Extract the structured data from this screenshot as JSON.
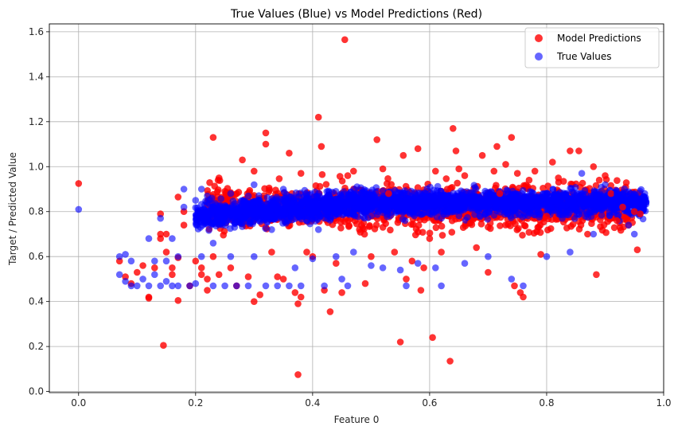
{
  "chart_data": {
    "type": "scatter",
    "title": "True Values (Blue) vs Model Predictions (Red)",
    "xlabel": "Feature 0",
    "ylabel": "Target / Predicted Value",
    "xlim": [
      -0.05,
      1.0
    ],
    "ylim": [
      -0.005,
      1.635
    ],
    "xticks": [
      0.0,
      0.2,
      0.4,
      0.6,
      0.8,
      1.0
    ],
    "xtick_labels": [
      "0.0",
      "0.2",
      "0.4",
      "0.6",
      "0.8",
      "1.0"
    ],
    "yticks": [
      0.0,
      0.2,
      0.4,
      0.6,
      0.8,
      1.0,
      1.2,
      1.4,
      1.6
    ],
    "ytick_labels": [
      "0.0",
      "0.2",
      "0.4",
      "0.6",
      "0.8",
      "1.0",
      "1.2",
      "1.4",
      "1.6"
    ],
    "grid": true,
    "legend_position": "top-right",
    "series": [
      {
        "name": "Model Predictions",
        "color": "#ff0000",
        "opacity": 0.8,
        "points": [
          [
            0.0,
            0.925
          ],
          [
            0.07,
            0.58
          ],
          [
            0.08,
            0.51
          ],
          [
            0.09,
            0.48
          ],
          [
            0.1,
            0.53
          ],
          [
            0.11,
            0.56
          ],
          [
            0.12,
            0.415
          ],
          [
            0.12,
            0.42
          ],
          [
            0.13,
            0.55
          ],
          [
            0.14,
            0.7
          ],
          [
            0.14,
            0.68
          ],
          [
            0.14,
            0.79
          ],
          [
            0.145,
            0.205
          ],
          [
            0.15,
            0.62
          ],
          [
            0.15,
            0.7
          ],
          [
            0.16,
            0.55
          ],
          [
            0.16,
            0.52
          ],
          [
            0.17,
            0.405
          ],
          [
            0.17,
            0.595
          ],
          [
            0.17,
            0.865
          ],
          [
            0.18,
            0.74
          ],
          [
            0.18,
            0.8
          ],
          [
            0.19,
            0.47
          ],
          [
            0.2,
            0.58
          ],
          [
            0.21,
            0.55
          ],
          [
            0.21,
            0.52
          ],
          [
            0.22,
            0.45
          ],
          [
            0.22,
            0.5
          ],
          [
            0.23,
            1.13
          ],
          [
            0.23,
            0.6
          ],
          [
            0.24,
            0.95
          ],
          [
            0.24,
            0.52
          ],
          [
            0.25,
            0.89
          ],
          [
            0.26,
            0.55
          ],
          [
            0.27,
            0.47
          ],
          [
            0.28,
            1.03
          ],
          [
            0.29,
            0.51
          ],
          [
            0.3,
            0.4
          ],
          [
            0.3,
            0.98
          ],
          [
            0.31,
            0.43
          ],
          [
            0.32,
            1.1
          ],
          [
            0.32,
            1.15
          ],
          [
            0.33,
            0.62
          ],
          [
            0.34,
            0.51
          ],
          [
            0.35,
            0.5
          ],
          [
            0.36,
            1.06
          ],
          [
            0.37,
            0.44
          ],
          [
            0.375,
            0.075
          ],
          [
            0.375,
            0.39
          ],
          [
            0.38,
            0.42
          ],
          [
            0.38,
            0.97
          ],
          [
            0.39,
            0.62
          ],
          [
            0.4,
            0.6
          ],
          [
            0.41,
            1.22
          ],
          [
            0.415,
            1.09
          ],
          [
            0.42,
            0.45
          ],
          [
            0.43,
            0.355
          ],
          [
            0.44,
            0.57
          ],
          [
            0.45,
            0.44
          ],
          [
            0.455,
            1.565
          ],
          [
            0.46,
            0.96
          ],
          [
            0.47,
            0.98
          ],
          [
            0.48,
            0.72
          ],
          [
            0.49,
            0.48
          ],
          [
            0.5,
            0.6
          ],
          [
            0.51,
            1.12
          ],
          [
            0.52,
            0.99
          ],
          [
            0.53,
            0.88
          ],
          [
            0.54,
            0.62
          ],
          [
            0.55,
            0.22
          ],
          [
            0.555,
            1.05
          ],
          [
            0.56,
            0.5
          ],
          [
            0.57,
            0.58
          ],
          [
            0.58,
            1.08
          ],
          [
            0.585,
            0.45
          ],
          [
            0.59,
            0.55
          ],
          [
            0.6,
            0.68
          ],
          [
            0.605,
            0.24
          ],
          [
            0.61,
            0.98
          ],
          [
            0.62,
            0.62
          ],
          [
            0.63,
            0.9
          ],
          [
            0.635,
            0.135
          ],
          [
            0.64,
            1.17
          ],
          [
            0.645,
            1.07
          ],
          [
            0.65,
            0.99
          ],
          [
            0.66,
            0.96
          ],
          [
            0.67,
            0.75
          ],
          [
            0.68,
            0.64
          ],
          [
            0.69,
            1.05
          ],
          [
            0.7,
            0.53
          ],
          [
            0.71,
            0.98
          ],
          [
            0.715,
            1.09
          ],
          [
            0.72,
            0.88
          ],
          [
            0.73,
            1.01
          ],
          [
            0.74,
            1.13
          ],
          [
            0.745,
            0.47
          ],
          [
            0.75,
            0.97
          ],
          [
            0.755,
            0.44
          ],
          [
            0.76,
            0.42
          ],
          [
            0.77,
            0.94
          ],
          [
            0.78,
            0.98
          ],
          [
            0.79,
            0.61
          ],
          [
            0.8,
            0.78
          ],
          [
            0.81,
            1.02
          ],
          [
            0.82,
            0.95
          ],
          [
            0.84,
            1.07
          ],
          [
            0.855,
            1.07
          ],
          [
            0.87,
            0.7
          ],
          [
            0.88,
            1.0
          ],
          [
            0.885,
            0.52
          ],
          [
            0.89,
            0.94
          ],
          [
            0.9,
            0.96
          ],
          [
            0.91,
            0.88
          ],
          [
            0.92,
            0.76
          ],
          [
            0.93,
            0.82
          ],
          [
            0.94,
            0.74
          ],
          [
            0.95,
            0.8
          ],
          [
            0.955,
            0.63
          ],
          [
            0.96,
            0.79
          ]
        ]
      },
      {
        "name": "True Values",
        "color": "#0000ff",
        "opacity": 0.6,
        "points": [
          [
            0.0,
            0.81
          ],
          [
            0.07,
            0.6
          ],
          [
            0.07,
            0.52
          ],
          [
            0.08,
            0.61
          ],
          [
            0.08,
            0.49
          ],
          [
            0.09,
            0.47
          ],
          [
            0.09,
            0.58
          ],
          [
            0.1,
            0.47
          ],
          [
            0.11,
            0.5
          ],
          [
            0.12,
            0.47
          ],
          [
            0.12,
            0.68
          ],
          [
            0.13,
            0.58
          ],
          [
            0.13,
            0.52
          ],
          [
            0.14,
            0.47
          ],
          [
            0.14,
            0.77
          ],
          [
            0.15,
            0.49
          ],
          [
            0.15,
            0.58
          ],
          [
            0.16,
            0.47
          ],
          [
            0.16,
            0.68
          ],
          [
            0.17,
            0.6
          ],
          [
            0.17,
            0.47
          ],
          [
            0.18,
            0.82
          ],
          [
            0.18,
            0.9
          ],
          [
            0.19,
            0.47
          ],
          [
            0.2,
            0.85
          ],
          [
            0.2,
            0.48
          ],
          [
            0.21,
            0.9
          ],
          [
            0.21,
            0.6
          ],
          [
            0.22,
            0.87
          ],
          [
            0.23,
            0.47
          ],
          [
            0.23,
            0.66
          ],
          [
            0.24,
            0.8
          ],
          [
            0.25,
            0.47
          ],
          [
            0.26,
            0.88
          ],
          [
            0.26,
            0.6
          ],
          [
            0.27,
            0.47
          ],
          [
            0.28,
            0.85
          ],
          [
            0.29,
            0.47
          ],
          [
            0.3,
            0.92
          ],
          [
            0.3,
            0.6
          ],
          [
            0.31,
            0.85
          ],
          [
            0.32,
            0.47
          ],
          [
            0.33,
            0.72
          ],
          [
            0.34,
            0.47
          ],
          [
            0.35,
            0.9
          ],
          [
            0.36,
            0.47
          ],
          [
            0.37,
            0.55
          ],
          [
            0.38,
            0.47
          ],
          [
            0.39,
            0.86
          ],
          [
            0.4,
            0.59
          ],
          [
            0.41,
            0.72
          ],
          [
            0.42,
            0.47
          ],
          [
            0.43,
            0.86
          ],
          [
            0.44,
            0.6
          ],
          [
            0.45,
            0.5
          ],
          [
            0.46,
            0.47
          ],
          [
            0.47,
            0.62
          ],
          [
            0.5,
            0.56
          ],
          [
            0.52,
            0.55
          ],
          [
            0.55,
            0.54
          ],
          [
            0.56,
            0.47
          ],
          [
            0.58,
            0.57
          ],
          [
            0.61,
            0.55
          ],
          [
            0.62,
            0.47
          ],
          [
            0.66,
            0.57
          ],
          [
            0.7,
            0.6
          ],
          [
            0.74,
            0.5
          ],
          [
            0.76,
            0.47
          ],
          [
            0.8,
            0.6
          ],
          [
            0.84,
            0.62
          ],
          [
            0.86,
            0.97
          ],
          [
            0.88,
            0.7
          ],
          [
            0.9,
            0.92
          ],
          [
            0.92,
            0.88
          ],
          [
            0.94,
            0.74
          ],
          [
            0.95,
            0.7
          ],
          [
            0.96,
            0.85
          ],
          [
            0.965,
            0.82
          ]
        ]
      }
    ]
  }
}
